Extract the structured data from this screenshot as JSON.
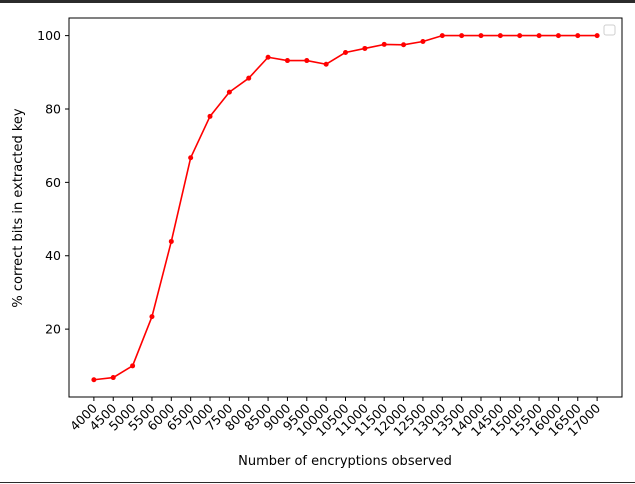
{
  "chart_data": {
    "type": "line",
    "title": "",
    "xlabel": "Number of encryptions observed",
    "ylabel": "% correct bits in extracted key",
    "x": [
      4000,
      4500,
      5000,
      5500,
      6000,
      6500,
      7000,
      7500,
      8000,
      8500,
      9000,
      9500,
      10000,
      10500,
      11000,
      11500,
      12000,
      12500,
      13000,
      13500,
      14000,
      14500,
      15000,
      15500,
      16000,
      16500,
      17000
    ],
    "x_tick_labels": [
      "4000",
      "4500",
      "5000",
      "5500",
      "6000",
      "6500",
      "7000",
      "7500",
      "8000",
      "8500",
      "9000",
      "9500",
      "10000",
      "10500",
      "11000",
      "11500",
      "12000",
      "12500",
      "13000",
      "13500",
      "14000",
      "14500",
      "15000",
      "15500",
      "16000",
      "16500",
      "17000"
    ],
    "series": [
      {
        "name": "",
        "color": "#ff0000",
        "marker": "dot",
        "values": [
          6.2,
          6.8,
          10.0,
          23.4,
          43.9,
          66.7,
          78.0,
          84.6,
          88.4,
          94.1,
          93.2,
          93.2,
          92.2,
          95.4,
          96.5,
          97.6,
          97.5,
          98.4,
          100,
          100,
          100,
          100,
          100,
          100,
          100,
          100,
          100
        ]
      }
    ],
    "y_ticks": [
      20,
      40,
      60,
      80,
      100
    ],
    "ylim": [
      1.5,
      104.8
    ],
    "grid": false,
    "legend": "top-right (empty)"
  }
}
